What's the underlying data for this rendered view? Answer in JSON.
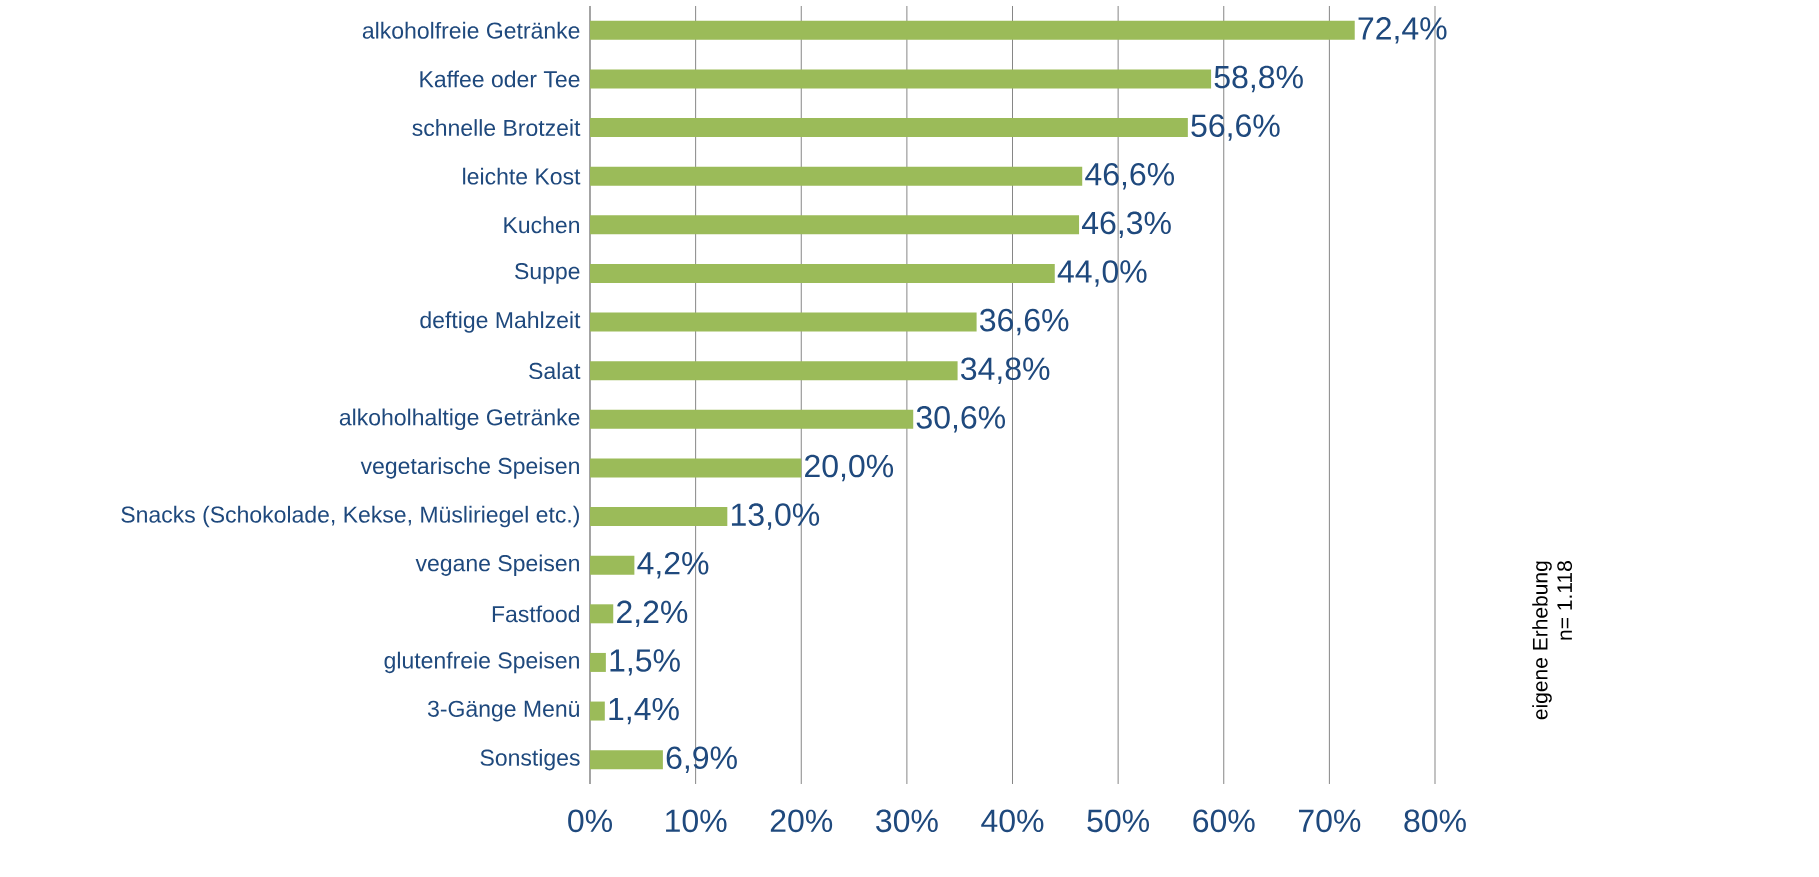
{
  "chart_data": {
    "type": "bar",
    "orientation": "horizontal",
    "categories": [
      "alkoholfreie Getränke",
      "Kaffee oder Tee",
      "schnelle Brotzeit",
      "leichte Kost",
      "Kuchen",
      "Suppe",
      "deftige Mahlzeit",
      "Salat",
      "alkoholhaltige Getränke",
      "vegetarische Speisen",
      "Snacks (Schokolade, Kekse, Müsliriegel etc.)",
      "vegane Speisen",
      "Fastfood",
      "glutenfreie Speisen",
      "3-Gänge Menü",
      "Sonstiges"
    ],
    "values": [
      72.4,
      58.8,
      56.6,
      46.6,
      46.3,
      44.0,
      36.6,
      34.8,
      30.6,
      20.0,
      13.0,
      4.2,
      2.2,
      1.5,
      1.4,
      6.9
    ],
    "value_labels": [
      "72,4%",
      "58,8%",
      "56,6%",
      "46,6%",
      "46,3%",
      "44,0%",
      "36,6%",
      "34,8%",
      "30,6%",
      "20,0%",
      "13,0%",
      "4,2%",
      "2,2%",
      "1,5%",
      "1,4%",
      "6,9%"
    ],
    "color": "#9bbb59",
    "xlim": [
      0,
      80
    ],
    "xticks": [
      {
        "value": 0,
        "label": "0%"
      },
      {
        "value": 10,
        "label": "10%"
      },
      {
        "value": 20,
        "label": "20%"
      },
      {
        "value": 30,
        "label": "30%"
      },
      {
        "value": 40,
        "label": "40%"
      },
      {
        "value": 50,
        "label": "50%"
      },
      {
        "value": 60,
        "label": "60%"
      },
      {
        "value": 70,
        "label": "70%"
      },
      {
        "value": 80,
        "label": "80%"
      }
    ],
    "grid": "x",
    "annotations": [
      "eigene Erhebung",
      "n= 1.118"
    ]
  }
}
